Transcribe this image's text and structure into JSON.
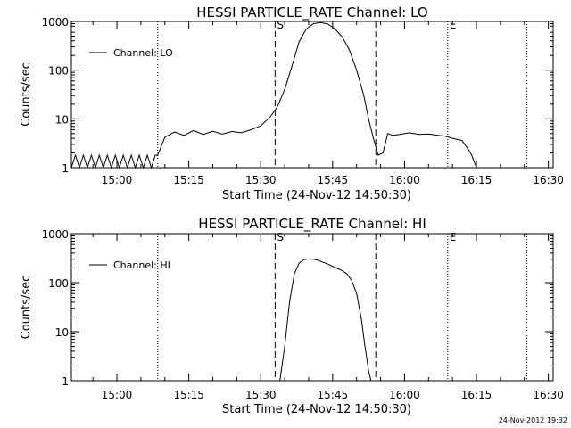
{
  "chart_data": [
    {
      "type": "line",
      "title": "HESSI PARTICLE_RATE Channel: LO",
      "xlabel": "Start Time (24-Nov-12 14:50:30)",
      "ylabel": "Counts/sec",
      "y_scale": "log",
      "ylim": [
        1,
        1000
      ],
      "xlim": [
        "14:50:30",
        "16:31:00"
      ],
      "x_ticks": [
        "15:00",
        "15:15",
        "15:30",
        "15:45",
        "16:00",
        "16:15",
        "16:30"
      ],
      "y_ticks": [
        "1",
        "10",
        "100",
        "1000"
      ],
      "legend": {
        "position": "top-left",
        "entry": "Channel: LO"
      },
      "markers": [
        {
          "time": "15:08:30",
          "label": "",
          "style": "dotted"
        },
        {
          "time": "15:33:00",
          "label": "S",
          "style": "dashed"
        },
        {
          "time": "15:54:00",
          "label": "",
          "style": "dashed"
        },
        {
          "time": "16:09:00",
          "label": "E",
          "style": "dotted"
        },
        {
          "time": "16:25:30",
          "label": "",
          "style": "dotted"
        }
      ],
      "series": [
        {
          "name": "Channel: LO",
          "x": [
            "14:50:30",
            "14:51:20",
            "14:52:10",
            "14:53:00",
            "14:53:50",
            "14:54:40",
            "14:55:30",
            "14:56:20",
            "14:57:10",
            "14:58:00",
            "14:58:50",
            "14:59:40",
            "15:00:30",
            "15:01:20",
            "15:02:10",
            "15:03:00",
            "15:03:50",
            "15:04:40",
            "15:05:30",
            "15:06:20",
            "15:07:10",
            "15:08:00",
            "15:08:30",
            "15:10:00",
            "15:12:00",
            "15:14:00",
            "15:16:00",
            "15:18:00",
            "15:20:00",
            "15:22:00",
            "15:24:00",
            "15:26:00",
            "15:28:00",
            "15:30:00",
            "15:32:00",
            "15:33:30",
            "15:35:00",
            "15:36:30",
            "15:38:00",
            "15:39:30",
            "15:41:00",
            "15:42:30",
            "15:44:00",
            "15:45:30",
            "15:47:00",
            "15:48:30",
            "15:50:00",
            "15:51:30",
            "15:52:30",
            "15:53:30",
            "15:54:30",
            "15:55:30",
            "15:56:30",
            "15:57:30",
            "15:59:00",
            "16:01:00",
            "16:03:00",
            "16:05:00",
            "16:07:00",
            "16:08:30",
            "16:10:00",
            "16:12:00",
            "16:13:30",
            "16:14:00",
            "16:15:00",
            "16:16:00",
            "16:17:00",
            "16:18:00",
            "16:20:00",
            "16:22:00",
            "16:24:00",
            "16:26:00",
            "16:28:00",
            "16:31:00"
          ],
          "values": [
            1,
            1.8,
            1,
            1.8,
            1,
            1.8,
            1,
            1.8,
            1,
            1.8,
            1,
            1.8,
            1,
            1.8,
            1,
            1.8,
            1,
            1.8,
            1,
            1.8,
            1,
            1.8,
            1.8,
            4.2,
            5.4,
            4.6,
            5.8,
            4.8,
            5.6,
            4.9,
            5.5,
            5.2,
            6.0,
            7.2,
            11,
            18,
            40,
            120,
            380,
            700,
            900,
            950,
            880,
            700,
            480,
            260,
            100,
            30,
            10,
            4,
            1.8,
            2.0,
            5.0,
            4.6,
            4.8,
            5.2,
            4.8,
            4.9,
            4.6,
            4.4,
            4.0,
            3.6,
            2.2,
            1.8,
            1,
            1,
            1,
            1,
            1,
            1,
            1,
            1,
            1,
            1
          ]
        }
      ]
    },
    {
      "type": "line",
      "title": "HESSI PARTICLE_RATE Channel: HI",
      "xlabel": "Start Time (24-Nov-12 14:50:30)",
      "ylabel": "Counts/sec",
      "y_scale": "log",
      "ylim": [
        1,
        1000
      ],
      "xlim": [
        "14:50:30",
        "16:31:00"
      ],
      "x_ticks": [
        "15:00",
        "15:15",
        "15:30",
        "15:45",
        "16:00",
        "16:15",
        "16:30"
      ],
      "y_ticks": [
        "1",
        "10",
        "100",
        "1000"
      ],
      "legend": {
        "position": "top-left",
        "entry": "Channel: HI"
      },
      "markers": [
        {
          "time": "15:08:30",
          "label": "",
          "style": "dotted"
        },
        {
          "time": "15:33:00",
          "label": "S",
          "style": "dashed"
        },
        {
          "time": "15:54:00",
          "label": "",
          "style": "dashed"
        },
        {
          "time": "16:09:00",
          "label": "E",
          "style": "dotted"
        },
        {
          "time": "16:25:30",
          "label": "",
          "style": "dotted"
        }
      ],
      "series": [
        {
          "name": "Channel: HI",
          "x": [
            "15:34:00",
            "15:35:00",
            "15:36:00",
            "15:37:00",
            "15:38:00",
            "15:39:00",
            "15:40:00",
            "15:41:00",
            "15:42:00",
            "15:43:00",
            "15:44:00",
            "15:45:00",
            "15:46:00",
            "15:47:00",
            "15:48:00",
            "15:49:00",
            "15:50:00",
            "15:51:00",
            "15:51:45",
            "15:52:30",
            "15:53:00"
          ],
          "values": [
            1,
            5,
            40,
            150,
            250,
            295,
            305,
            300,
            285,
            260,
            240,
            215,
            195,
            175,
            150,
            110,
            60,
            18,
            5,
            1.6,
            1
          ]
        }
      ]
    }
  ],
  "footer_text": "24-Nov-2012 19:32"
}
